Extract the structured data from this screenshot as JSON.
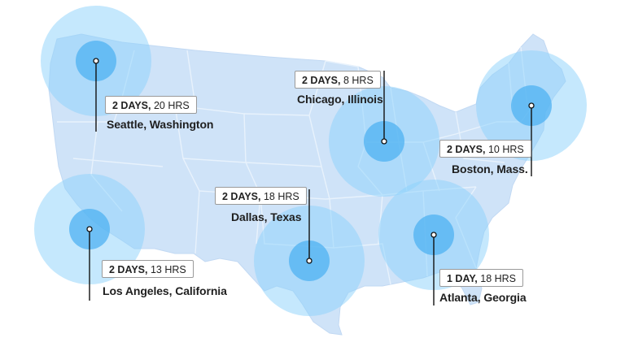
{
  "colors": {
    "map_fill": "#cfe3f8",
    "state_lines": "#e8f2fc",
    "outer_circle": "#8cd2fb",
    "inner_circle": "#4fb2f1",
    "leader_line": "#111111"
  },
  "markers": [
    {
      "id": "seattle",
      "days": "2 DAYS,",
      "hours": "20 HRS",
      "city": "Seattle, Washington"
    },
    {
      "id": "chicago",
      "days": "2 DAYS,",
      "hours": "8 HRS",
      "city": "Chicago, Illinois"
    },
    {
      "id": "boston",
      "days": "2 DAYS,",
      "hours": "10 HRS",
      "city": "Boston, Mass."
    },
    {
      "id": "dallas",
      "days": "2 DAYS,",
      "hours": "18 HRS",
      "city": "Dallas, Texas"
    },
    {
      "id": "los-angeles",
      "days": "2 DAYS,",
      "hours": "13 HRS",
      "city": "Los Angeles, California"
    },
    {
      "id": "atlanta",
      "days": "1 DAY,",
      "hours": "18 HRS",
      "city": "Atlanta, Georgia"
    }
  ]
}
